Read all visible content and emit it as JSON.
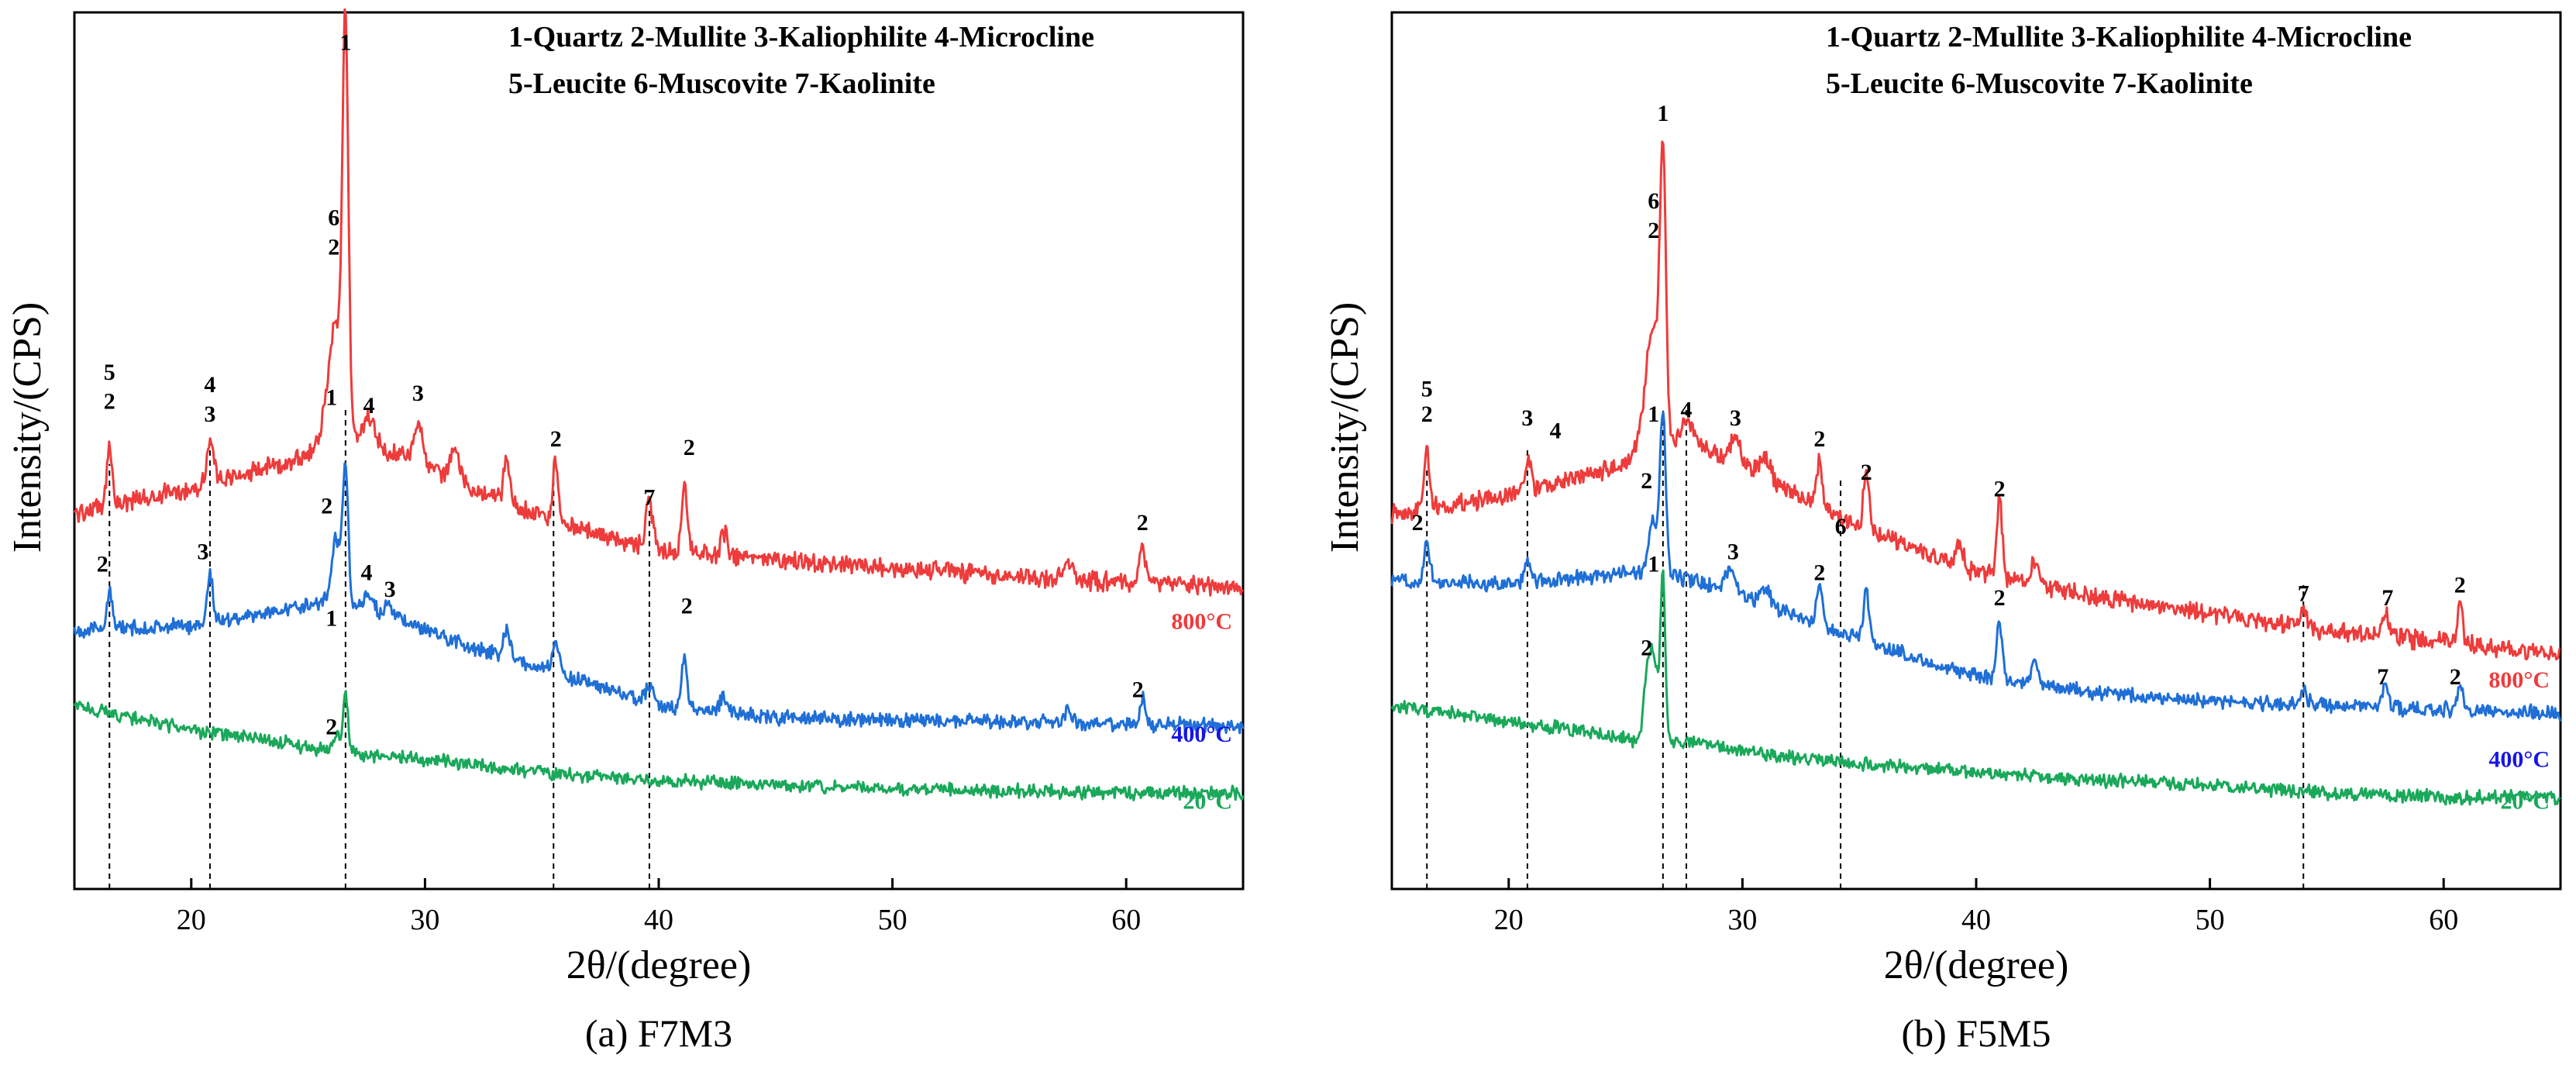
{
  "chart_data": [
    {
      "id": "a",
      "type": "line",
      "caption": "(a) F7M3",
      "xlabel": "2θ/(degree)",
      "ylabel": "Intensity/(CPS)",
      "xlim": [
        15,
        65
      ],
      "xticks": [
        20,
        30,
        40,
        50,
        60
      ],
      "yticks_shown": false,
      "legend": [
        "1-Quartz 2-Mullite 3-Kaliophilite 4-Microcline",
        "5-Leucite 6-Muscovite 7-Kaolinite"
      ],
      "dashed_lines_x": [
        16.5,
        20.8,
        26.6,
        35.5,
        39.6
      ],
      "series": [
        {
          "name": "800°C",
          "color": "#ee3b3b",
          "label_color": "#ee3b3b",
          "background": [
            [
              15,
              70
            ],
            [
              20,
              76
            ],
            [
              24,
              82
            ],
            [
              26,
              86
            ],
            [
              29,
              84
            ],
            [
              32,
              76
            ],
            [
              36,
              67
            ],
            [
              40,
              61
            ],
            [
              45,
              59
            ],
            [
              55,
              55
            ],
            [
              65,
              52
            ]
          ],
          "noise": 1.8,
          "peaks": [
            [
              16.5,
              14,
              0.12
            ],
            [
              20.8,
              10,
              0.15
            ],
            [
              26.2,
              30,
              0.35
            ],
            [
              26.6,
              90,
              0.12
            ],
            [
              27.6,
              8,
              0.3
            ],
            [
              29.7,
              9,
              0.2
            ],
            [
              31.3,
              7,
              0.2
            ],
            [
              33.5,
              11,
              0.12
            ],
            [
              35.6,
              15,
              0.12
            ],
            [
              39.6,
              11,
              0.15
            ],
            [
              41.1,
              16,
              0.12
            ],
            [
              42.8,
              5,
              0.15
            ],
            [
              57.5,
              4,
              0.15
            ],
            [
              60.7,
              9,
              0.12
            ]
          ],
          "end_label_y": 43
        },
        {
          "name": "400°C",
          "color": "#1f6fd6",
          "label_color": "#1515e6",
          "background": [
            [
              15,
              42
            ],
            [
              20,
              43
            ],
            [
              24,
              47
            ],
            [
              26,
              49
            ],
            [
              28,
              46
            ],
            [
              32,
              38
            ],
            [
              36,
              31
            ],
            [
              40,
              24
            ],
            [
              45,
              21
            ],
            [
              55,
              20
            ],
            [
              65,
              19
            ]
          ],
          "noise": 1.4,
          "peaks": [
            [
              16.5,
              9,
              0.12
            ],
            [
              20.8,
              12,
              0.12
            ],
            [
              26.2,
              15,
              0.2
            ],
            [
              26.6,
              32,
              0.12
            ],
            [
              27.6,
              4,
              0.2
            ],
            [
              28.5,
              3,
              0.2
            ],
            [
              33.5,
              7,
              0.15
            ],
            [
              35.6,
              7,
              0.15
            ],
            [
              39.6,
              4,
              0.15
            ],
            [
              41.1,
              12,
              0.12
            ],
            [
              42.8,
              4,
              0.15
            ],
            [
              57.5,
              3,
              0.15
            ],
            [
              60.7,
              6,
              0.12
            ]
          ],
          "end_label_y": 16
        },
        {
          "name": "20°C",
          "color": "#1aa85a",
          "label_color": "#1aa85a",
          "background": [
            [
              15,
              24
            ],
            [
              20,
              18
            ],
            [
              24,
              15
            ],
            [
              26,
              13
            ],
            [
              30,
              11
            ],
            [
              35,
              8
            ],
            [
              40,
              6
            ],
            [
              50,
              4
            ],
            [
              60,
              3
            ],
            [
              65,
              3
            ]
          ],
          "noise": 1.3,
          "peaks": [
            [
              26.2,
              4,
              0.15
            ],
            [
              26.6,
              15,
              0.1
            ]
          ],
          "end_label_y": 0
        }
      ],
      "peak_labels": [
        {
          "x": 16.5,
          "y": 102,
          "text": "5"
        },
        {
          "x": 16.5,
          "y": 95,
          "text": "2"
        },
        {
          "x": 20.8,
          "y": 99,
          "text": "4"
        },
        {
          "x": 20.8,
          "y": 92,
          "text": "3"
        },
        {
          "x": 26.6,
          "y": 181,
          "text": "1"
        },
        {
          "x": 26.1,
          "y": 139,
          "text": "6"
        },
        {
          "x": 26.1,
          "y": 132,
          "text": "2"
        },
        {
          "x": 27.6,
          "y": 94,
          "text": "4"
        },
        {
          "x": 29.7,
          "y": 97,
          "text": "3"
        },
        {
          "x": 35.6,
          "y": 86,
          "text": "2"
        },
        {
          "x": 39.6,
          "y": 72,
          "text": "7"
        },
        {
          "x": 41.3,
          "y": 84,
          "text": "2"
        },
        {
          "x": 60.7,
          "y": 66,
          "text": "2"
        },
        {
          "x": 16.2,
          "y": 56,
          "text": "2"
        },
        {
          "x": 20.5,
          "y": 59,
          "text": "3"
        },
        {
          "x": 26.0,
          "y": 96,
          "text": "1"
        },
        {
          "x": 25.8,
          "y": 70,
          "text": "2"
        },
        {
          "x": 27.5,
          "y": 54,
          "text": "4"
        },
        {
          "x": 28.5,
          "y": 50,
          "text": "3"
        },
        {
          "x": 41.2,
          "y": 46,
          "text": "2"
        },
        {
          "x": 60.5,
          "y": 26,
          "text": "2"
        },
        {
          "x": 26.0,
          "y": 43,
          "text": "1"
        },
        {
          "x": 26.0,
          "y": 17,
          "text": "2"
        }
      ]
    },
    {
      "id": "b",
      "type": "line",
      "caption": "(b) F5M5",
      "xlabel": "2θ/(degree)",
      "ylabel": "Intensity/(CPS)",
      "xlim": [
        15,
        65
      ],
      "xticks": [
        20,
        30,
        40,
        50,
        60
      ],
      "yticks_shown": false,
      "legend": [
        "1-Quartz 2-Mullite 3-Kaliophilite 4-Microcline",
        "5-Leucite 6-Muscovite 7-Kaolinite"
      ],
      "dashed_lines_x": [
        16.5,
        20.8,
        26.6,
        27.6,
        34.2,
        54.0
      ],
      "series": [
        {
          "name": "800°C",
          "color": "#ee3b3b",
          "label_color": "#ee3b3b",
          "background": [
            [
              15,
              70
            ],
            [
              20,
              74
            ],
            [
              24,
              80
            ],
            [
              26,
              84
            ],
            [
              28,
              86
            ],
            [
              30,
              82
            ],
            [
              33,
              72
            ],
            [
              36,
              64
            ],
            [
              40,
              56
            ],
            [
              45,
              50
            ],
            [
              50,
              46
            ],
            [
              55,
              42
            ],
            [
              60,
              39
            ],
            [
              65,
              36
            ]
          ],
          "noise": 1.8,
          "peaks": [
            [
              16.5,
              14,
              0.12
            ],
            [
              20.8,
              8,
              0.15
            ],
            [
              26.2,
              30,
              0.35
            ],
            [
              26.6,
              60,
              0.12
            ],
            [
              27.6,
              6,
              0.3
            ],
            [
              29.7,
              6,
              0.2
            ],
            [
              31.0,
              5,
              0.2
            ],
            [
              33.3,
              12,
              0.12
            ],
            [
              35.3,
              15,
              0.12
            ],
            [
              39.3,
              6,
              0.15
            ],
            [
              41.0,
              18,
              0.12
            ],
            [
              42.5,
              6,
              0.15
            ],
            [
              54.0,
              4,
              0.15
            ],
            [
              57.5,
              5,
              0.15
            ],
            [
              60.7,
              9,
              0.12
            ]
          ],
          "end_label_y": 29
        },
        {
          "name": "400°C",
          "color": "#1f6fd6",
          "label_color": "#1515e6",
          "background": [
            [
              15,
              54
            ],
            [
              20,
              53
            ],
            [
              24,
              55
            ],
            [
              26,
              56
            ],
            [
              28,
              54
            ],
            [
              30,
              50
            ],
            [
              33,
              44
            ],
            [
              36,
              38
            ],
            [
              40,
              31
            ],
            [
              45,
              27
            ],
            [
              50,
              25
            ],
            [
              55,
              24
            ],
            [
              60,
              23
            ],
            [
              65,
              22
            ]
          ],
          "noise": 1.4,
          "peaks": [
            [
              16.5,
              10,
              0.12
            ],
            [
              20.8,
              5,
              0.15
            ],
            [
              26.2,
              12,
              0.2
            ],
            [
              26.6,
              38,
              0.12
            ],
            [
              29.5,
              6,
              0.2
            ],
            [
              31.0,
              4,
              0.2
            ],
            [
              33.3,
              9,
              0.12
            ],
            [
              35.3,
              12,
              0.12
            ],
            [
              41.0,
              14,
              0.12
            ],
            [
              42.5,
              5,
              0.15
            ],
            [
              54.0,
              3,
              0.15
            ],
            [
              57.5,
              6,
              0.12
            ],
            [
              60.7,
              6,
              0.12
            ]
          ],
          "end_label_y": 10
        },
        {
          "name": "20°C",
          "color": "#1aa85a",
          "label_color": "#1aa85a",
          "background": [
            [
              15,
              24
            ],
            [
              20,
              20
            ],
            [
              24,
              17
            ],
            [
              26,
              15
            ],
            [
              28,
              15
            ],
            [
              30,
              13
            ],
            [
              35,
              10
            ],
            [
              40,
              8
            ],
            [
              45,
              6
            ],
            [
              50,
              5
            ],
            [
              55,
              3
            ],
            [
              60,
              2
            ],
            [
              65,
              2
            ]
          ],
          "noise": 1.3,
          "peaks": [
            [
              25.9,
              12,
              0.15
            ],
            [
              26.2,
              20,
              0.2
            ],
            [
              26.6,
              38,
              0.1
            ]
          ],
          "end_label_y": 0
        }
      ],
      "peak_labels": [
        {
          "x": 16.5,
          "y": 98,
          "text": "5"
        },
        {
          "x": 16.5,
          "y": 92,
          "text": "2"
        },
        {
          "x": 20.8,
          "y": 91,
          "text": "3"
        },
        {
          "x": 22.0,
          "y": 88,
          "text": "4"
        },
        {
          "x": 26.6,
          "y": 164,
          "text": "1"
        },
        {
          "x": 26.2,
          "y": 143,
          "text": "6"
        },
        {
          "x": 26.2,
          "y": 136,
          "text": "2"
        },
        {
          "x": 27.6,
          "y": 93,
          "text": "4"
        },
        {
          "x": 29.7,
          "y": 91,
          "text": "3"
        },
        {
          "x": 33.3,
          "y": 86,
          "text": "2"
        },
        {
          "x": 35.3,
          "y": 78,
          "text": "2"
        },
        {
          "x": 41.0,
          "y": 74,
          "text": "2"
        },
        {
          "x": 34.2,
          "y": 65,
          "text": "6"
        },
        {
          "x": 54.0,
          "y": 49,
          "text": "7"
        },
        {
          "x": 57.6,
          "y": 48,
          "text": "7"
        },
        {
          "x": 60.7,
          "y": 51,
          "text": "2"
        },
        {
          "x": 16.1,
          "y": 66,
          "text": "2"
        },
        {
          "x": 25.9,
          "y": 76,
          "text": "2"
        },
        {
          "x": 26.2,
          "y": 92,
          "text": "1"
        },
        {
          "x": 29.6,
          "y": 59,
          "text": "3"
        },
        {
          "x": 33.3,
          "y": 54,
          "text": "2"
        },
        {
          "x": 41.0,
          "y": 48,
          "text": "2"
        },
        {
          "x": 57.4,
          "y": 29,
          "text": "7"
        },
        {
          "x": 60.5,
          "y": 29,
          "text": "2"
        },
        {
          "x": 25.9,
          "y": 36,
          "text": "2"
        },
        {
          "x": 26.2,
          "y": 56,
          "text": "1"
        }
      ]
    }
  ]
}
